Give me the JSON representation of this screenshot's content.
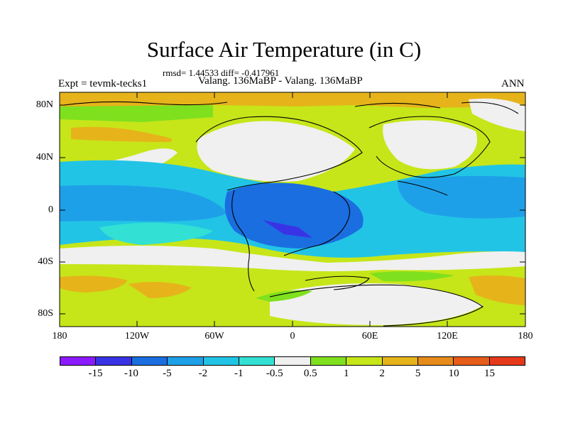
{
  "title": "Surface Air Temperature (in C)",
  "stats": "rmsd= 1.44533 diff= -0.417961",
  "subtitle": "Valang. 136MaBP - Valang. 136MaBP",
  "expt": "Expt = tevmk-tecks1",
  "season": "ANN",
  "lat_labels": [
    "80N",
    "40N",
    "0",
    "40S",
    "80S"
  ],
  "lon_labels": [
    "180",
    "120W",
    "60W",
    "0",
    "60E",
    "120E",
    "180"
  ],
  "colorbar": {
    "colors": [
      "#8c1aff",
      "#3a33e6",
      "#1a6ee0",
      "#1ea0e8",
      "#22c4e6",
      "#33e0d4",
      "#f0f0f0",
      "#7fe01e",
      "#c6e619",
      "#e6b41a",
      "#e68a1a",
      "#e65c19",
      "#e6391a"
    ],
    "labels": [
      "-15",
      "-10",
      "-5",
      "-2",
      "-1",
      "-0.5",
      "0.5",
      "1",
      "2",
      "5",
      "10",
      "15"
    ]
  }
}
